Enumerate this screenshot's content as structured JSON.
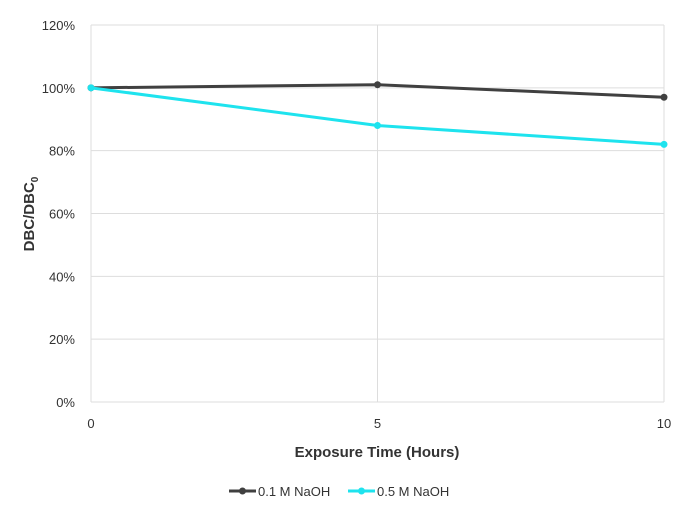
{
  "chart_data": {
    "type": "line",
    "title": "",
    "xlabel": "Exposure Time (Hours)",
    "ylabel": "DBC/DBC",
    "ylabel_subscript": "0",
    "x": [
      0,
      5,
      10
    ],
    "x_ticks": [
      "0",
      "5",
      "10"
    ],
    "xlim": [
      0,
      10
    ],
    "ylim": [
      0,
      120
    ],
    "y_ticks": [
      "0%",
      "20%",
      "40%",
      "60%",
      "80%",
      "100%",
      "120%"
    ],
    "y_tick_values": [
      0,
      20,
      40,
      60,
      80,
      100,
      120
    ],
    "grid": true,
    "legend_position": "bottom-center",
    "series": [
      {
        "name": "0.1 M NaOH",
        "values": [
          100,
          101,
          97
        ],
        "color": "#404040"
      },
      {
        "name": "0.5 M NaOH",
        "values": [
          100,
          88,
          82
        ],
        "color": "#1ee3ee"
      }
    ]
  }
}
